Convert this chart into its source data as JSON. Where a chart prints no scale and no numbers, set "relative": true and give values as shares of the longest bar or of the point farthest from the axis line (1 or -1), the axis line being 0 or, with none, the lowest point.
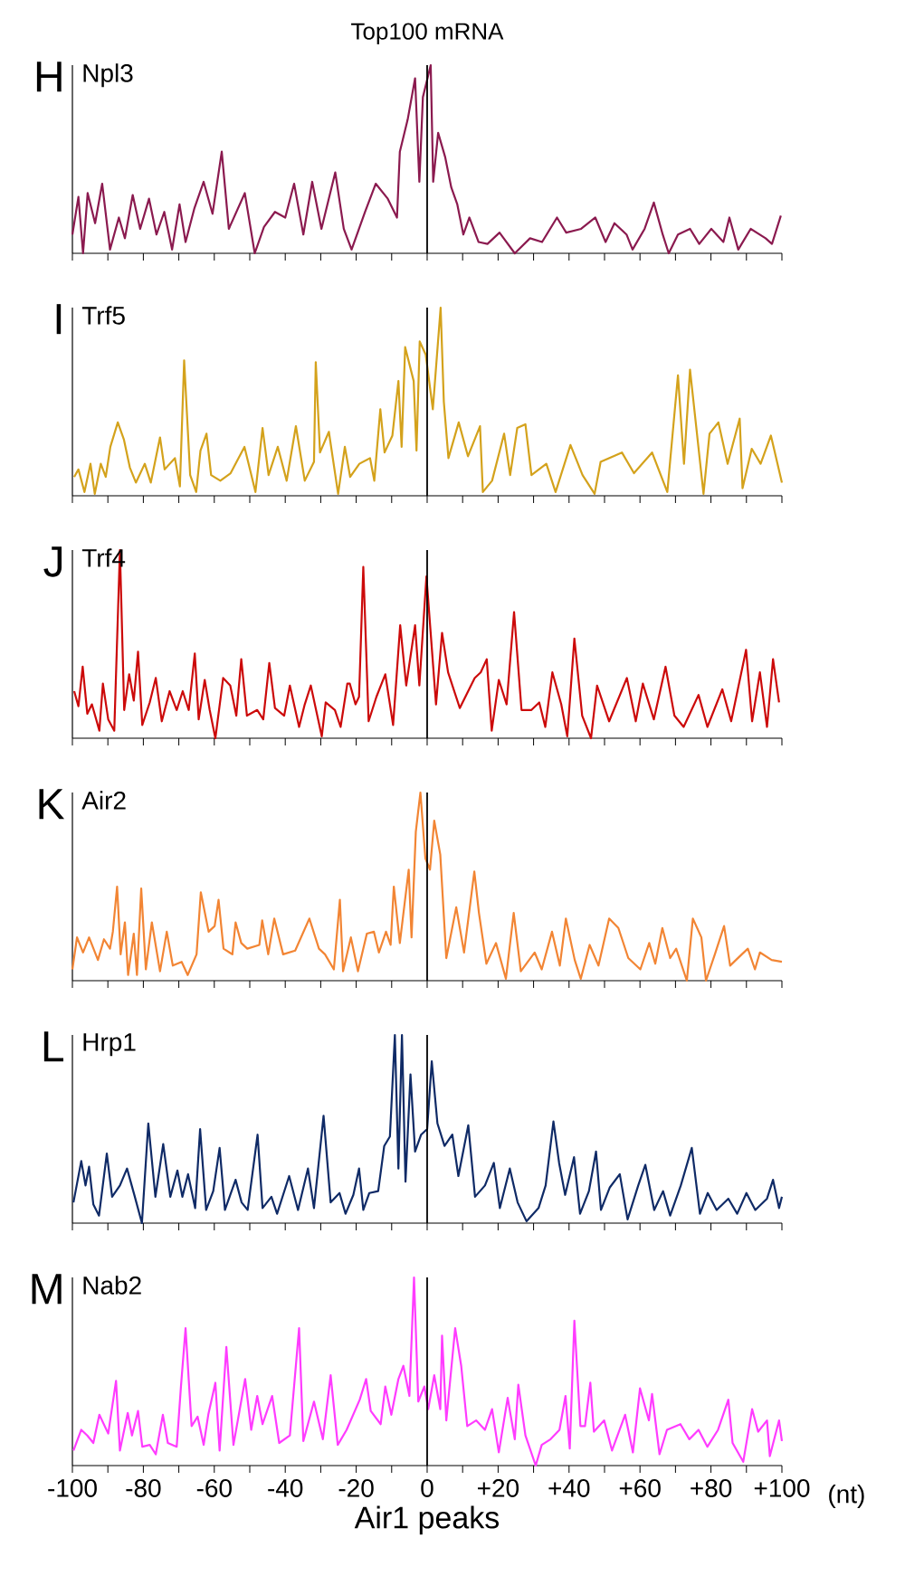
{
  "chart_data": [
    {
      "type": "line",
      "title": "Top100 mRNA",
      "ylabel": "H",
      "relative": true,
      "xlim": [
        -100,
        100
      ],
      "tick_labels": false,
      "xticks": [
        {
          "value": -100,
          "label": null
        },
        {
          "value": -90,
          "label": null
        },
        {
          "value": -80,
          "label": null
        },
        {
          "value": -70,
          "label": null
        },
        {
          "value": -60,
          "label": null
        },
        {
          "value": -50,
          "label": null
        },
        {
          "value": -40,
          "label": null
        },
        {
          "value": -30,
          "label": null
        },
        {
          "value": -20,
          "label": null
        },
        {
          "value": -10,
          "label": null
        },
        {
          "value": 0,
          "label": null
        },
        {
          "value": 10,
          "label": null
        },
        {
          "value": 20,
          "label": null
        },
        {
          "value": 30,
          "label": null
        },
        {
          "value": 40,
          "label": null
        },
        {
          "value": 50,
          "label": null
        },
        {
          "value": 60,
          "label": null
        },
        {
          "value": 70,
          "label": null
        },
        {
          "value": 80,
          "label": null
        },
        {
          "value": 90,
          "label": null
        },
        {
          "value": 100,
          "label": null
        }
      ],
      "ref_lines": [
        {
          "axis": "x",
          "value": 0,
          "color": "#000000"
        }
      ],
      "series": [
        {
          "name": "Npl3",
          "color": "#8b1a4f",
          "x": [
            -100,
            -98.3,
            -97,
            -95.7,
            -93.6,
            -91.6,
            -89.4,
            -86.9,
            -85.2,
            -83,
            -80.9,
            -78.4,
            -76.3,
            -74.1,
            -71.9,
            -69.8,
            -68.1,
            -65.6,
            -63,
            -60.5,
            -57.9,
            -55.9,
            -51.4,
            -48.6,
            -46,
            -42.9,
            -40,
            -37.5,
            -34.9,
            -32.4,
            -29.8,
            -25.9,
            -23.5,
            -21.3,
            -17.5,
            -14.5,
            -11.1,
            -8.5,
            -7.7,
            -5.5,
            -3.4,
            -2.2,
            -1.2,
            1,
            1.7,
            3.1,
            5.1,
            6.8,
            8.5,
            10.2,
            11.9,
            14.5,
            17,
            20.4,
            24.7,
            29,
            32.4,
            36.6,
            39.2,
            43.4,
            47.4,
            50.3,
            52.8,
            56.2,
            57.9,
            61.3,
            63.9,
            66.4,
            68.1,
            70.7,
            74.1,
            76.7,
            80.1,
            83.5,
            85.2,
            87.7,
            91.2,
            95.4,
            97.2,
            99.7
          ],
          "values": [
            0.1,
            0.3,
            0,
            0.32,
            0.16,
            0.37,
            0.02,
            0.19,
            0.08,
            0.31,
            0.13,
            0.29,
            0.1,
            0.22,
            0.02,
            0.26,
            0.06,
            0.24,
            0.38,
            0.21,
            0.54,
            0.13,
            0.32,
            0,
            0.14,
            0.22,
            0.19,
            0.37,
            0.1,
            0.38,
            0.13,
            0.43,
            0.13,
            0.02,
            0.22,
            0.37,
            0.29,
            0.19,
            0.54,
            0.71,
            0.93,
            0.38,
            0.83,
            1.0,
            0.38,
            0.64,
            0.51,
            0.35,
            0.26,
            0.1,
            0.19,
            0.06,
            0.05,
            0.11,
            0,
            0.08,
            0.06,
            0.19,
            0.11,
            0.13,
            0.19,
            0.06,
            0.16,
            0.1,
            0.02,
            0.13,
            0.27,
            0.1,
            0,
            0.1,
            0.13,
            0.05,
            0.13,
            0.06,
            0.19,
            0.02,
            0.13,
            0.08,
            0.05,
            0.2
          ]
        }
      ]
    },
    {
      "type": "line",
      "ylabel": "I",
      "relative": true,
      "xlim": [
        -100,
        100
      ],
      "tick_labels": false,
      "xticks": [
        {
          "value": -100,
          "label": null
        },
        {
          "value": -90,
          "label": null
        },
        {
          "value": -80,
          "label": null
        },
        {
          "value": -70,
          "label": null
        },
        {
          "value": -60,
          "label": null
        },
        {
          "value": -50,
          "label": null
        },
        {
          "value": -40,
          "label": null
        },
        {
          "value": -30,
          "label": null
        },
        {
          "value": -20,
          "label": null
        },
        {
          "value": -10,
          "label": null
        },
        {
          "value": 0,
          "label": null
        },
        {
          "value": 10,
          "label": null
        },
        {
          "value": 20,
          "label": null
        },
        {
          "value": 30,
          "label": null
        },
        {
          "value": 40,
          "label": null
        },
        {
          "value": 50,
          "label": null
        },
        {
          "value": 60,
          "label": null
        },
        {
          "value": 70,
          "label": null
        },
        {
          "value": 80,
          "label": null
        },
        {
          "value": 90,
          "label": null
        },
        {
          "value": 100,
          "label": null
        }
      ],
      "ref_lines": [
        {
          "axis": "x",
          "value": 0,
          "color": "#000000"
        }
      ],
      "series": [
        {
          "name": "Trf5",
          "color": "#d4a21c",
          "x": [
            -99.5,
            -98.3,
            -96.6,
            -94.9,
            -93.7,
            -92,
            -90.6,
            -89.3,
            -87.2,
            -85.5,
            -83.8,
            -82.1,
            -79.6,
            -77.9,
            -75.3,
            -74,
            -71.1,
            -69.7,
            -68.5,
            -66.8,
            -65.1,
            -63.9,
            -62.2,
            -60.9,
            -58.3,
            -55.4,
            -51.5,
            -48.4,
            -46.4,
            -44.7,
            -42.1,
            -39.6,
            -37,
            -34.5,
            -31.9,
            -31.4,
            -30.2,
            -27.7,
            -25.1,
            -23.2,
            -21.7,
            -19.1,
            -16.1,
            -14.9,
            -13.2,
            -12,
            -9.8,
            -8.1,
            -7.2,
            -6.2,
            -3.8,
            -3,
            -2.1,
            -0.4,
            1.6,
            3.8,
            4.7,
            6,
            8.9,
            11.5,
            14.9,
            15.7,
            18.3,
            21.7,
            23.4,
            25.4,
            27.7,
            29.4,
            33.6,
            36.2,
            40.4,
            43.8,
            47.2,
            48.9,
            54.9,
            58.3,
            63.4,
            67.7,
            70.7,
            72.4,
            74.1,
            77.9,
            79.6,
            82.1,
            84.7,
            88.1,
            88.9,
            91.5,
            94,
            96.9,
            100
          ],
          "values": [
            0.1,
            0.14,
            0.02,
            0.17,
            0.01,
            0.17,
            0.1,
            0.26,
            0.39,
            0.3,
            0.15,
            0.07,
            0.17,
            0.07,
            0.31,
            0.14,
            0.2,
            0.05,
            0.72,
            0.11,
            0.02,
            0.24,
            0.33,
            0.11,
            0.08,
            0.12,
            0.26,
            0.02,
            0.36,
            0.11,
            0.26,
            0.08,
            0.37,
            0.08,
            0.18,
            0.71,
            0.23,
            0.34,
            0.01,
            0.26,
            0.1,
            0.17,
            0.2,
            0.08,
            0.46,
            0.23,
            0.32,
            0.61,
            0.26,
            0.79,
            0.61,
            0.24,
            0.82,
            0.75,
            0.46,
            1.0,
            0.5,
            0.2,
            0.39,
            0.21,
            0.37,
            0.02,
            0.08,
            0.33,
            0.11,
            0.36,
            0.38,
            0.11,
            0.17,
            0.02,
            0.27,
            0.11,
            0.01,
            0.18,
            0.23,
            0.12,
            0.23,
            0.02,
            0.64,
            0.17,
            0.67,
            0.01,
            0.33,
            0.39,
            0.17,
            0.41,
            0.04,
            0.25,
            0.17,
            0.32,
            0.07
          ]
        }
      ]
    },
    {
      "type": "line",
      "ylabel": "J",
      "relative": true,
      "xlim": [
        -100,
        100
      ],
      "tick_labels": false,
      "xticks": [
        {
          "value": -100,
          "label": null
        },
        {
          "value": -90,
          "label": null
        },
        {
          "value": -80,
          "label": null
        },
        {
          "value": -70,
          "label": null
        },
        {
          "value": -60,
          "label": null
        },
        {
          "value": -50,
          "label": null
        },
        {
          "value": -40,
          "label": null
        },
        {
          "value": -30,
          "label": null
        },
        {
          "value": -20,
          "label": null
        },
        {
          "value": -10,
          "label": null
        },
        {
          "value": 0,
          "label": null
        },
        {
          "value": 10,
          "label": null
        },
        {
          "value": 20,
          "label": null
        },
        {
          "value": 30,
          "label": null
        },
        {
          "value": 40,
          "label": null
        },
        {
          "value": 50,
          "label": null
        },
        {
          "value": 60,
          "label": null
        },
        {
          "value": 70,
          "label": null
        },
        {
          "value": 80,
          "label": null
        },
        {
          "value": 90,
          "label": null
        },
        {
          "value": 100,
          "label": null
        }
      ],
      "ref_lines": [
        {
          "axis": "x",
          "value": 0,
          "color": "#000000"
        }
      ],
      "series": [
        {
          "name": "Trf4",
          "color": "#cc0a0a",
          "x": [
            -99.5,
            -98.3,
            -97.1,
            -95.8,
            -94.5,
            -92.4,
            -91.4,
            -89.9,
            -88.2,
            -86.6,
            -85.4,
            -84,
            -82.7,
            -81.5,
            -80.3,
            -78.2,
            -76.5,
            -74.8,
            -72.6,
            -70.6,
            -68.9,
            -67.2,
            -65.5,
            -64.4,
            -62.7,
            -61.3,
            -59.7,
            -57.5,
            -55.5,
            -53.8,
            -52.4,
            -50.8,
            -47.9,
            -46.2,
            -44.5,
            -42.9,
            -40.3,
            -38.7,
            -36.1,
            -34.5,
            -32.8,
            -29.7,
            -28.6,
            -26,
            -24.4,
            -22.5,
            -21.8,
            -20.2,
            -19.2,
            -18,
            -16.5,
            -14.3,
            -11.8,
            -9.6,
            -7.6,
            -5.9,
            -3.4,
            -2.2,
            -0.2,
            2.5,
            4.2,
            5.9,
            9.2,
            13.4,
            15.1,
            16.8,
            18.2,
            20.2,
            22.4,
            24.5,
            26.6,
            29.4,
            31.6,
            33.3,
            35.3,
            37.8,
            39.5,
            41.5,
            43.7,
            46.2,
            47.9,
            51.3,
            56.3,
            58.8,
            60.8,
            63.9,
            67.2,
            69.7,
            72.3,
            76.5,
            79,
            83.2,
            85.7,
            89.9,
            91.6,
            93.8,
            95.8,
            97.5,
            99.2
          ],
          "values": [
            0.25,
            0.17,
            0.38,
            0.13,
            0.18,
            0.04,
            0.29,
            0.1,
            0.04,
            1.0,
            0.15,
            0.34,
            0.2,
            0.46,
            0.07,
            0.19,
            0.32,
            0.09,
            0.25,
            0.15,
            0.25,
            0.15,
            0.45,
            0.1,
            0.31,
            0.15,
            0,
            0.32,
            0.28,
            0.12,
            0.42,
            0.12,
            0.15,
            0.1,
            0.4,
            0.16,
            0.12,
            0.28,
            0.06,
            0.18,
            0.28,
            0.01,
            0.19,
            0.15,
            0.06,
            0.29,
            0.29,
            0.18,
            0.22,
            0.91,
            0.09,
            0.22,
            0.34,
            0.07,
            0.6,
            0.28,
            0.6,
            0.28,
            0.86,
            0.18,
            0.56,
            0.35,
            0.16,
            0.32,
            0.35,
            0.42,
            0.04,
            0.31,
            0.18,
            0.67,
            0.15,
            0.15,
            0.19,
            0.06,
            0.35,
            0.18,
            0.01,
            0.53,
            0.12,
            0,
            0.28,
            0.09,
            0.32,
            0.09,
            0.29,
            0.1,
            0.38,
            0.12,
            0.06,
            0.23,
            0.06,
            0.26,
            0.09,
            0.47,
            0.09,
            0.35,
            0.06,
            0.42,
            0.19
          ]
        }
      ]
    },
    {
      "type": "line",
      "ylabel": "K",
      "relative": true,
      "xlim": [
        -100,
        100
      ],
      "tick_labels": false,
      "xticks": [
        {
          "value": -100,
          "label": null
        },
        {
          "value": -90,
          "label": null
        },
        {
          "value": -80,
          "label": null
        },
        {
          "value": -70,
          "label": null
        },
        {
          "value": -60,
          "label": null
        },
        {
          "value": -50,
          "label": null
        },
        {
          "value": -40,
          "label": null
        },
        {
          "value": -30,
          "label": null
        },
        {
          "value": -20,
          "label": null
        },
        {
          "value": -10,
          "label": null
        },
        {
          "value": 0,
          "label": null
        },
        {
          "value": 10,
          "label": null
        },
        {
          "value": 20,
          "label": null
        },
        {
          "value": 30,
          "label": null
        },
        {
          "value": 40,
          "label": null
        },
        {
          "value": 50,
          "label": null
        },
        {
          "value": 60,
          "label": null
        },
        {
          "value": 70,
          "label": null
        },
        {
          "value": 80,
          "label": null
        },
        {
          "value": 90,
          "label": null
        },
        {
          "value": 100,
          "label": null
        }
      ],
      "ref_lines": [
        {
          "axis": "x",
          "value": 0,
          "color": "#000000"
        }
      ],
      "series": [
        {
          "name": "Air2",
          "color": "#f28534",
          "x": [
            -100,
            -98.7,
            -97,
            -95.3,
            -92.8,
            -91.1,
            -89.4,
            -88.6,
            -87.4,
            -86.4,
            -85.2,
            -84.3,
            -82.7,
            -81.8,
            -80.6,
            -79.3,
            -77.6,
            -75.3,
            -73.4,
            -71.7,
            -69.2,
            -67.5,
            -65,
            -63.8,
            -61.6,
            -59.9,
            -58.8,
            -57.4,
            -54.9,
            -54,
            -52.4,
            -50.7,
            -47.3,
            -46.5,
            -44.8,
            -43.1,
            -40.6,
            -37.2,
            -33.2,
            -30.5,
            -28.8,
            -26.3,
            -24.6,
            -23.7,
            -21.5,
            -19.5,
            -17,
            -15,
            -13.6,
            -11.6,
            -10.3,
            -9.4,
            -7.7,
            -5.2,
            -4.4,
            -3.2,
            -1.9,
            -0.5,
            0.8,
            2,
            3.7,
            5.4,
            8.2,
            10.4,
            13.3,
            14.6,
            16.7,
            19.4,
            22.2,
            24.4,
            26.4,
            30.3,
            32.3,
            35.2,
            37.4,
            39.1,
            41.6,
            43.3,
            45.8,
            48.3,
            51.3,
            53.9,
            56.7,
            60.1,
            62.6,
            64.3,
            66.3,
            68.5,
            70.2,
            73.2,
            74.9,
            77.3,
            78.6,
            81.1,
            83.7,
            85.4,
            88.7,
            90.4,
            92.4,
            93.8,
            97.1,
            100
          ],
          "values": [
            0.06,
            0.23,
            0.15,
            0.23,
            0.11,
            0.22,
            0.17,
            0.26,
            0.5,
            0.14,
            0.31,
            0.03,
            0.25,
            0.03,
            0.49,
            0.06,
            0.31,
            0.05,
            0.26,
            0.08,
            0.1,
            0.03,
            0.14,
            0.47,
            0.26,
            0.29,
            0.43,
            0.17,
            0.14,
            0.31,
            0.2,
            0.17,
            0.19,
            0.32,
            0.14,
            0.33,
            0.14,
            0.16,
            0.33,
            0.17,
            0.14,
            0.06,
            0.43,
            0.05,
            0.23,
            0.05,
            0.25,
            0.26,
            0.15,
            0.26,
            0.19,
            0.5,
            0.2,
            0.59,
            0.23,
            0.79,
            1.0,
            0.65,
            0.59,
            0.85,
            0.67,
            0.12,
            0.39,
            0.15,
            0.58,
            0.36,
            0.09,
            0.2,
            0.01,
            0.36,
            0.05,
            0.15,
            0.06,
            0.26,
            0.08,
            0.33,
            0.11,
            0.01,
            0.19,
            0.08,
            0.33,
            0.28,
            0.12,
            0.06,
            0.2,
            0.09,
            0.28,
            0.12,
            0.17,
            0,
            0.33,
            0.23,
            0,
            0.14,
            0.29,
            0.08,
            0.14,
            0.17,
            0.06,
            0.15,
            0.11,
            0.1
          ]
        }
      ]
    },
    {
      "type": "line",
      "ylabel": "L",
      "relative": true,
      "xlim": [
        -100,
        100
      ],
      "tick_labels": false,
      "xticks": [
        {
          "value": -100,
          "label": null
        },
        {
          "value": -90,
          "label": null
        },
        {
          "value": -80,
          "label": null
        },
        {
          "value": -70,
          "label": null
        },
        {
          "value": -60,
          "label": null
        },
        {
          "value": -50,
          "label": null
        },
        {
          "value": -40,
          "label": null
        },
        {
          "value": -30,
          "label": null
        },
        {
          "value": -20,
          "label": null
        },
        {
          "value": -10,
          "label": null
        },
        {
          "value": 0,
          "label": null
        },
        {
          "value": 10,
          "label": null
        },
        {
          "value": 20,
          "label": null
        },
        {
          "value": 30,
          "label": null
        },
        {
          "value": 40,
          "label": null
        },
        {
          "value": 50,
          "label": null
        },
        {
          "value": 60,
          "label": null
        },
        {
          "value": 70,
          "label": null
        },
        {
          "value": 80,
          "label": null
        },
        {
          "value": 90,
          "label": null
        },
        {
          "value": 100,
          "label": null
        }
      ],
      "ref_lines": [
        {
          "axis": "x",
          "value": 0,
          "color": "#000000"
        }
      ],
      "series": [
        {
          "name": "Hrp1",
          "color": "#0f2a66",
          "x": [
            -99.7,
            -97.5,
            -96.3,
            -95.3,
            -94.1,
            -92.5,
            -90.3,
            -88.8,
            -86.6,
            -84.6,
            -82.4,
            -80.4,
            -78.6,
            -76.6,
            -74.4,
            -72.4,
            -70.4,
            -69,
            -67.4,
            -65.4,
            -64,
            -62.3,
            -60.3,
            -58.5,
            -57,
            -54,
            -52.3,
            -50.6,
            -47.8,
            -46.4,
            -43.9,
            -42.3,
            -38.9,
            -36.4,
            -33.6,
            -31.9,
            -29.2,
            -27.2,
            -24.7,
            -23,
            -20.8,
            -19.2,
            -18,
            -16.3,
            -13.8,
            -12.1,
            -10.5,
            -9.1,
            -8.1,
            -7.1,
            -6.1,
            -4.7,
            -3.4,
            -1.7,
            0,
            1.3,
            2.9,
            4.9,
            7.1,
            8.8,
            11.6,
            13.5,
            16.3,
            18.8,
            20.5,
            23.3,
            25.5,
            28,
            31.4,
            33.4,
            35.6,
            37.2,
            38.9,
            41.4,
            43.1,
            45.6,
            47.6,
            49,
            51.5,
            54.3,
            56.5,
            59.5,
            61.5,
            64,
            66.5,
            68.5,
            71.5,
            74.6,
            76.9,
            79.1,
            81.6,
            84.9,
            87.4,
            90,
            92.5,
            95.8,
            97.5,
            99.2,
            100
          ],
          "values": [
            0.11,
            0.33,
            0.2,
            0.3,
            0.1,
            0.04,
            0.37,
            0.14,
            0.2,
            0.29,
            0.14,
            0,
            0.53,
            0.14,
            0.42,
            0.14,
            0.28,
            0.14,
            0.26,
            0.08,
            0.5,
            0.07,
            0.17,
            0.4,
            0.07,
            0.23,
            0.11,
            0.07,
            0.47,
            0.08,
            0.14,
            0.05,
            0.25,
            0.07,
            0.29,
            0.08,
            0.57,
            0.11,
            0.16,
            0.05,
            0.15,
            0.29,
            0.07,
            0.16,
            0.17,
            0.41,
            0.46,
            1.0,
            0.29,
            1.0,
            0.22,
            0.79,
            0.38,
            0.47,
            0.5,
            0.86,
            0.53,
            0.41,
            0.47,
            0.25,
            0.52,
            0.14,
            0.2,
            0.32,
            0.08,
            0.29,
            0.11,
            0.01,
            0.08,
            0.2,
            0.54,
            0.32,
            0.15,
            0.35,
            0.05,
            0.17,
            0.38,
            0.07,
            0.19,
            0.26,
            0.02,
            0.2,
            0.31,
            0.07,
            0.17,
            0.04,
            0.2,
            0.4,
            0.05,
            0.16,
            0.07,
            0.13,
            0.05,
            0.16,
            0.07,
            0.13,
            0.23,
            0.08,
            0.14
          ]
        }
      ]
    },
    {
      "type": "line",
      "ylabel": "M",
      "xlabel": "Air1 peaks",
      "relative": true,
      "xlim": [
        -100,
        100
      ],
      "tick_labels": "x",
      "xticks": [
        -100,
        {
          "value": -90,
          "label": null
        },
        -80,
        {
          "value": -70,
          "label": null
        },
        -60,
        {
          "value": -50,
          "label": null
        },
        -40,
        {
          "value": -30,
          "label": null
        },
        -20,
        {
          "value": -10,
          "label": null
        },
        0,
        {
          "value": 10,
          "label": null
        },
        {
          "value": 20,
          "label": "+20"
        },
        {
          "value": 30,
          "label": null
        },
        {
          "value": 40,
          "label": "+40"
        },
        {
          "value": 50,
          "label": null
        },
        {
          "value": 60,
          "label": "+60"
        },
        {
          "value": 70,
          "label": null
        },
        {
          "value": 80,
          "label": "+80"
        },
        {
          "value": 90,
          "label": null
        },
        {
          "value": 100,
          "label": "+100"
        }
      ],
      "ref_lines": [
        {
          "axis": "x",
          "value": 0,
          "color": "#000000"
        }
      ],
      "annotations": [
        "(nt)"
      ],
      "series": [
        {
          "name": "Nab2",
          "color": "#ff3cff",
          "x": [
            -99.7,
            -97.5,
            -95.8,
            -94.1,
            -92.4,
            -89.9,
            -87.7,
            -86.6,
            -84.4,
            -83.2,
            -81.5,
            -80.3,
            -78.2,
            -76.5,
            -74.5,
            -73.1,
            -70.6,
            -69.4,
            -68.1,
            -66.4,
            -64.7,
            -63,
            -61.7,
            -59.7,
            -58.5,
            -56.6,
            -54.6,
            -51.3,
            -49.6,
            -47.9,
            -46.4,
            -43.7,
            -41.7,
            -38.7,
            -36.1,
            -34.9,
            -31.9,
            -29.4,
            -27.2,
            -25.2,
            -22.7,
            -19,
            -17.2,
            -15.9,
            -13.1,
            -11.8,
            -10.1,
            -8.1,
            -6.7,
            -5,
            -3.7,
            -2.5,
            -0.8,
            0.3,
            2,
            3.7,
            4.2,
            5.4,
            7.9,
            9.6,
            11.3,
            13.8,
            16.3,
            18.3,
            20.2,
            22.7,
            24.7,
            25.7,
            27.7,
            30.6,
            32.3,
            34.8,
            37.3,
            39,
            40.2,
            41.5,
            43.2,
            44.5,
            46,
            47,
            49.9,
            52.1,
            55.8,
            58,
            60,
            62.5,
            63.4,
            65.5,
            67.6,
            71.4,
            73.9,
            76.5,
            79,
            82,
            84.9,
            86.1,
            89.1,
            91.6,
            93.3,
            95.8,
            96.6,
            99.2,
            100
          ],
          "values": [
            0.08,
            0.19,
            0.16,
            0.12,
            0.27,
            0.17,
            0.45,
            0.08,
            0.28,
            0.16,
            0.29,
            0.1,
            0.11,
            0.06,
            0.27,
            0.12,
            0.1,
            0.42,
            0.73,
            0.21,
            0.26,
            0.11,
            0.27,
            0.44,
            0.08,
            0.63,
            0.11,
            0.46,
            0.19,
            0.37,
            0.22,
            0.37,
            0.12,
            0.16,
            0.73,
            0.13,
            0.34,
            0.14,
            0.48,
            0.11,
            0.19,
            0.35,
            0.46,
            0.29,
            0.22,
            0.42,
            0.27,
            0.46,
            0.53,
            0.37,
            1.0,
            0.34,
            0.42,
            0.3,
            0.48,
            0.3,
            0.69,
            0.24,
            0.73,
            0.53,
            0.21,
            0.24,
            0.19,
            0.3,
            0.07,
            0.36,
            0.14,
            0.43,
            0.16,
            0,
            0.11,
            0.14,
            0.19,
            0.37,
            0.09,
            0.77,
            0.21,
            0.21,
            0.44,
            0.18,
            0.24,
            0.08,
            0.27,
            0.07,
            0.41,
            0.24,
            0.38,
            0.06,
            0.19,
            0.22,
            0.14,
            0.19,
            0.1,
            0.19,
            0.35,
            0.12,
            0.02,
            0.3,
            0.18,
            0.24,
            0.05,
            0.24,
            0.13
          ]
        }
      ]
    }
  ]
}
